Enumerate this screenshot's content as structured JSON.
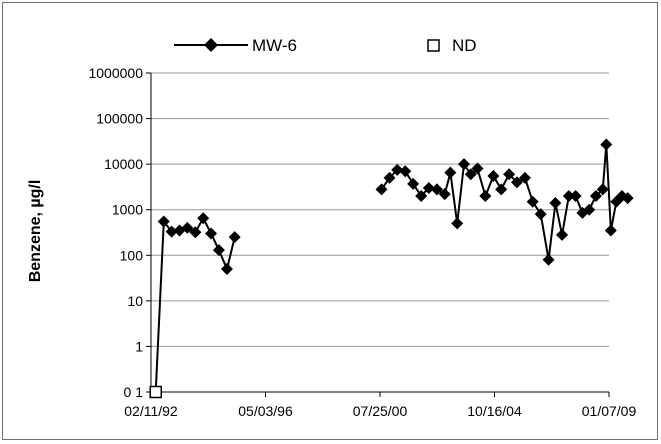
{
  "chart_data": {
    "type": "line",
    "title": "",
    "xlabel": "",
    "ylabel": "Benzene, µg/l",
    "y_scale": "log",
    "ylim": [
      0.1,
      1000000
    ],
    "xlim": [
      "02/11/92",
      "01/07/09"
    ],
    "grid": "horizontal",
    "legend_position": "top",
    "y_tick_labels": [
      "0 1",
      "1",
      "10",
      "100",
      "1000",
      "10000",
      "100000",
      "1000000"
    ],
    "x_tick_labels": [
      "02/11/92",
      "05/03/96",
      "07/25/00",
      "10/16/04",
      "01/07/09"
    ],
    "series": [
      {
        "name": "MW-6",
        "marker": "diamond",
        "color": "#000000",
        "segments": [
          [
            {
              "x": "1992-04-15",
              "y": 0.1
            },
            {
              "x": "1992-08-01",
              "y": 550
            },
            {
              "x": "1992-11-15",
              "y": 330
            },
            {
              "x": "1993-03-01",
              "y": 350
            },
            {
              "x": "1993-06-15",
              "y": 400
            },
            {
              "x": "1993-10-01",
              "y": 320
            },
            {
              "x": "1994-01-15",
              "y": 650
            },
            {
              "x": "1994-05-01",
              "y": 300
            },
            {
              "x": "1994-08-15",
              "y": 130
            },
            {
              "x": "1994-12-01",
              "y": 50
            },
            {
              "x": "1995-03-15",
              "y": 250
            }
          ],
          [
            {
              "x": "2000-08-15",
              "y": 2800
            },
            {
              "x": "2000-12-01",
              "y": 5000
            },
            {
              "x": "2001-03-15",
              "y": 7500
            },
            {
              "x": "2001-07-01",
              "y": 7000
            },
            {
              "x": "2001-10-15",
              "y": 3700
            },
            {
              "x": "2002-02-01",
              "y": 2000
            },
            {
              "x": "2002-05-15",
              "y": 3000
            },
            {
              "x": "2002-09-01",
              "y": 2800
            },
            {
              "x": "2002-12-15",
              "y": 2200
            },
            {
              "x": "2003-03-01",
              "y": 6500
            },
            {
              "x": "2003-06-01",
              "y": 500
            },
            {
              "x": "2003-09-01",
              "y": 10000
            },
            {
              "x": "2003-12-01",
              "y": 6000
            },
            {
              "x": "2004-03-01",
              "y": 8000
            },
            {
              "x": "2004-06-15",
              "y": 2000
            },
            {
              "x": "2004-10-01",
              "y": 5500
            },
            {
              "x": "2005-01-15",
              "y": 2800
            },
            {
              "x": "2005-05-01",
              "y": 6000
            },
            {
              "x": "2005-08-15",
              "y": 4000
            },
            {
              "x": "2005-12-01",
              "y": 5000
            },
            {
              "x": "2006-03-15",
              "y": 1500
            },
            {
              "x": "2006-07-01",
              "y": 800
            },
            {
              "x": "2006-10-15",
              "y": 80
            },
            {
              "x": "2007-01-15",
              "y": 1400
            },
            {
              "x": "2007-04-15",
              "y": 280
            },
            {
              "x": "2007-07-15",
              "y": 2000
            },
            {
              "x": "2007-10-15",
              "y": 2000
            },
            {
              "x": "2008-01-15",
              "y": 850
            },
            {
              "x": "2008-04-15",
              "y": 1000
            },
            {
              "x": "2008-07-15",
              "y": 2000
            },
            {
              "x": "2008-10-15",
              "y": 2800
            },
            {
              "x": "2008-12-01",
              "y": 27000
            },
            {
              "x": "2009-02-01",
              "y": 350
            },
            {
              "x": "2009-04-15",
              "y": 1500
            },
            {
              "x": "2009-07-01",
              "y": 2000
            },
            {
              "x": "2009-09-15",
              "y": 1800
            }
          ]
        ]
      },
      {
        "name": "ND",
        "marker": "open-square",
        "color": "#000000",
        "points": [
          {
            "x": "1992-04-15",
            "y": 0.1
          }
        ]
      }
    ]
  }
}
